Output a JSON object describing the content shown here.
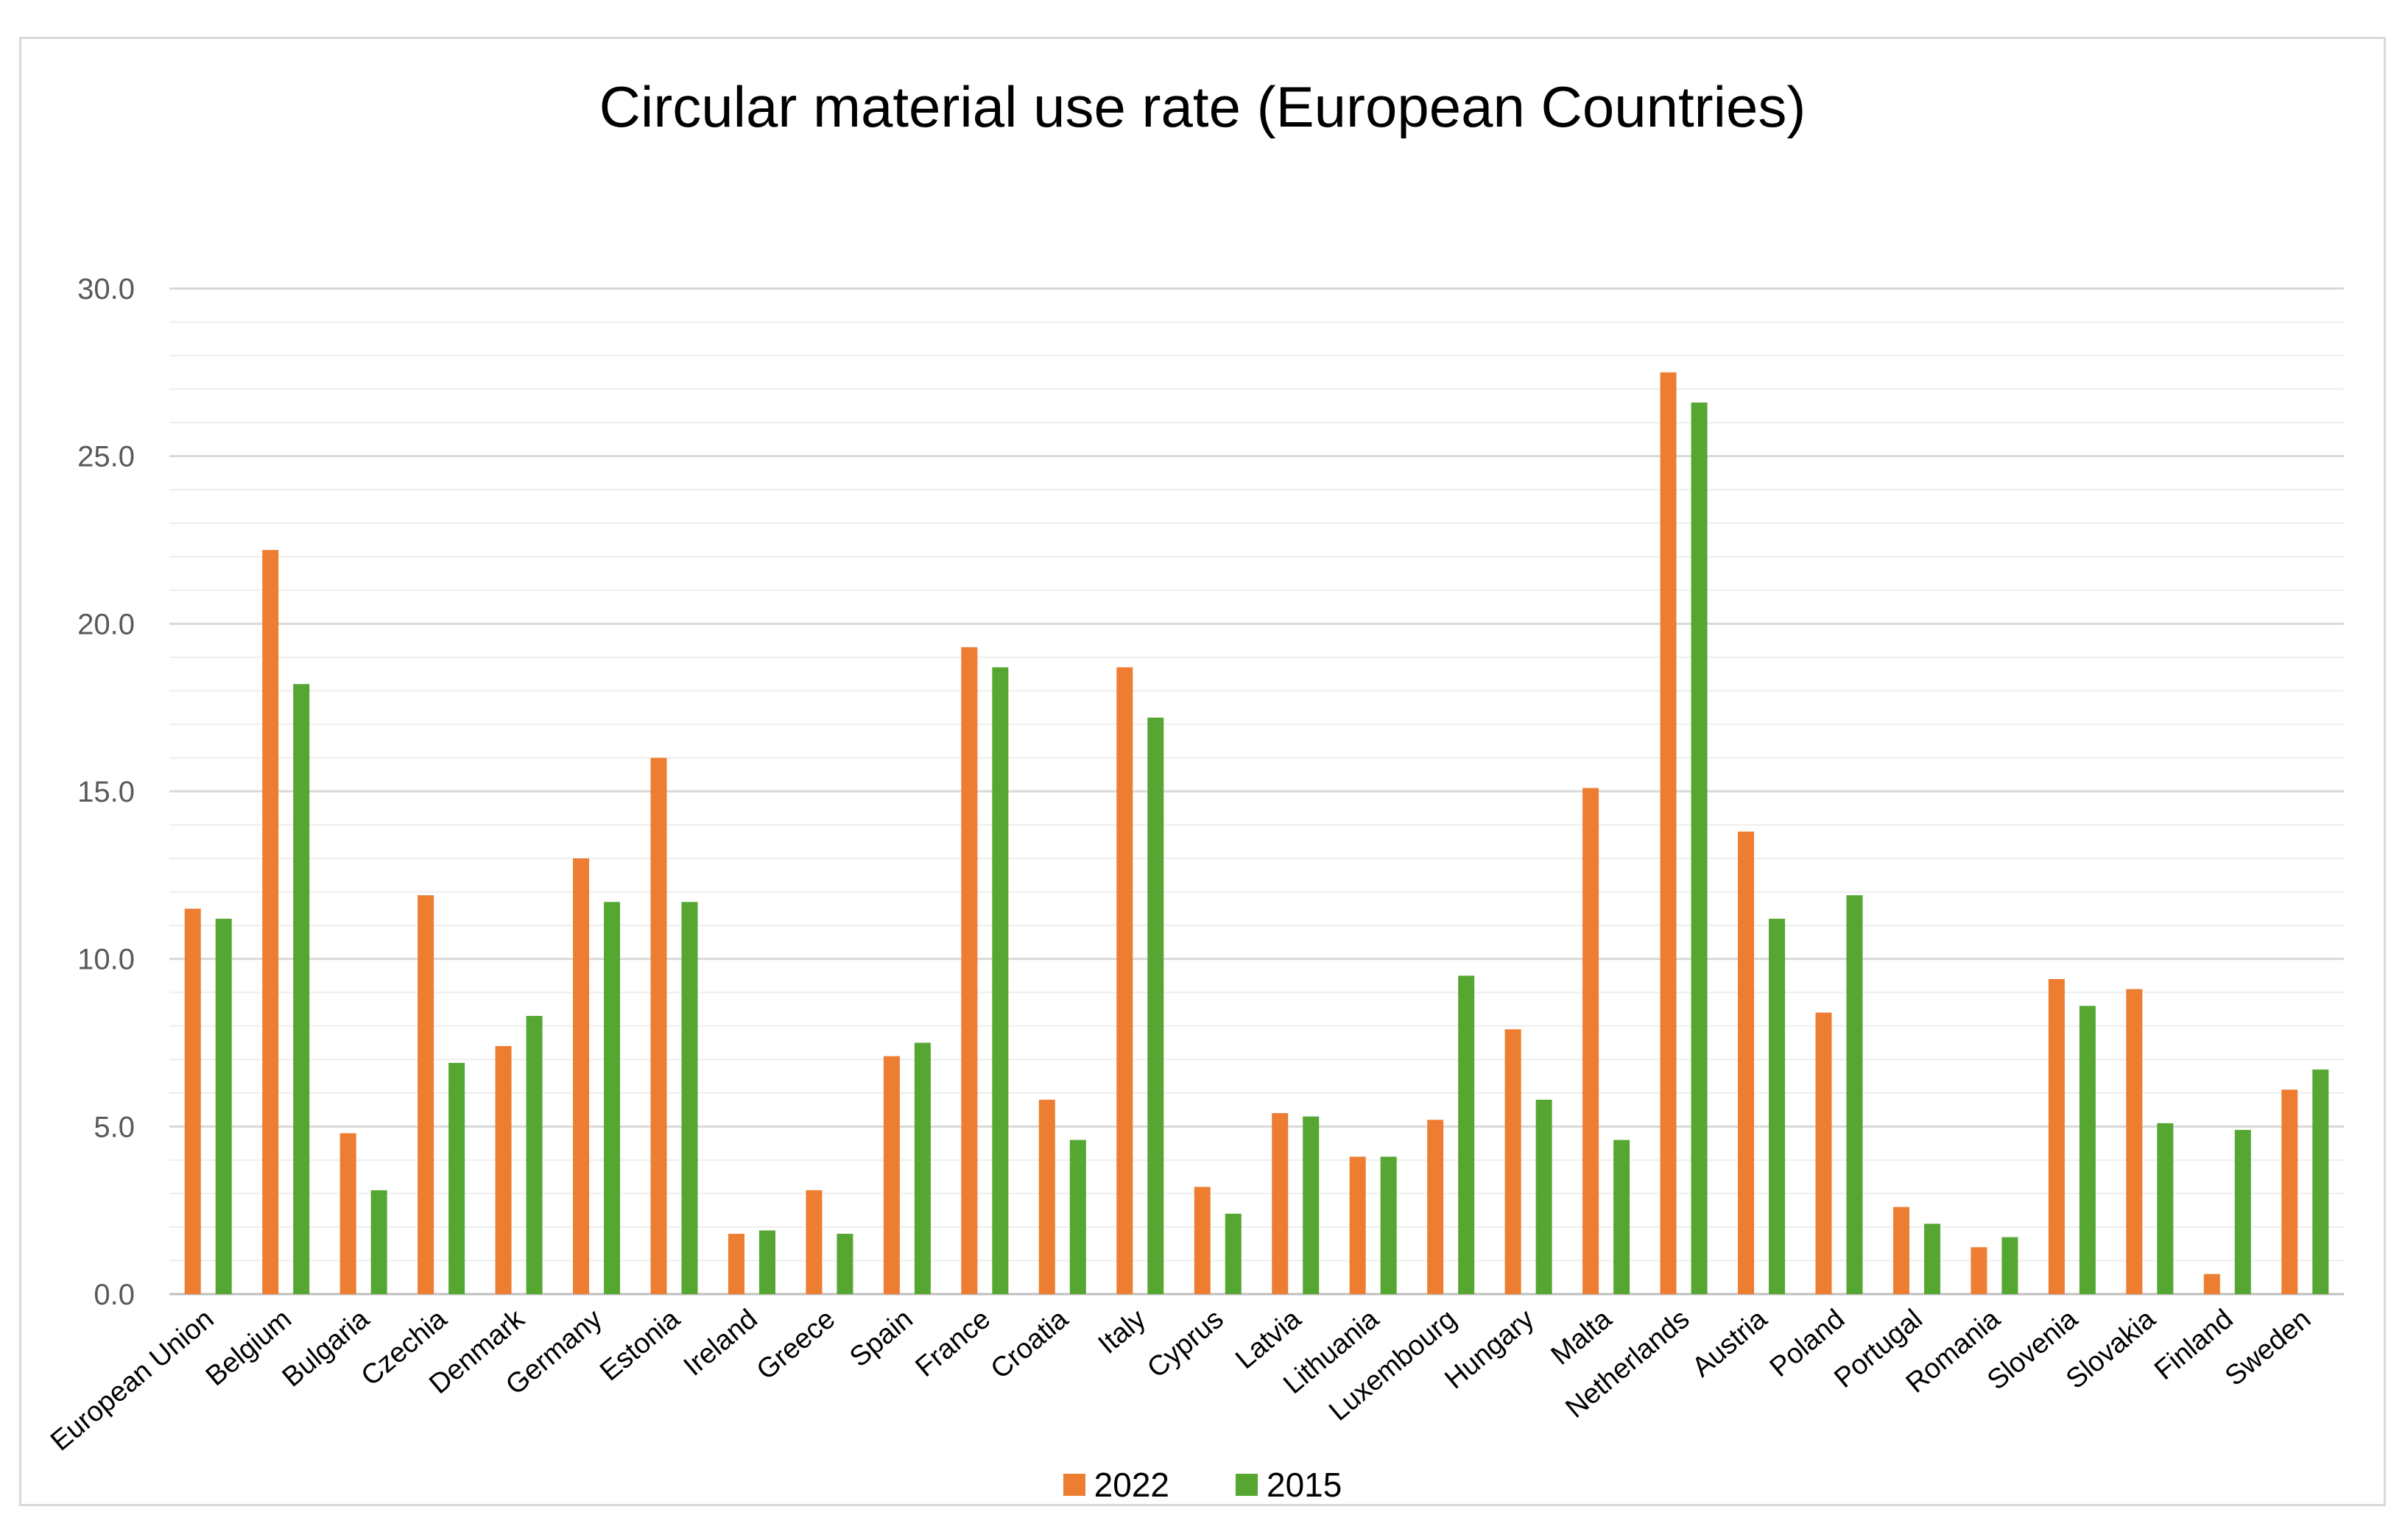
{
  "chart_data": {
    "type": "bar",
    "title": "Circular material use rate (European Countries)",
    "xlabel": "",
    "ylabel": "",
    "ylim": [
      0,
      30
    ],
    "yticks": [
      "0.0",
      "5.0",
      "10.0",
      "15.0",
      "20.0",
      "25.0",
      "30.0"
    ],
    "grid": true,
    "legend_position": "bottom",
    "categories": [
      "European Union",
      "Belgium",
      "Bulgaria",
      "Czechia",
      "Denmark",
      "Germany",
      "Estonia",
      "Ireland",
      "Greece",
      "Spain",
      "France",
      "Croatia",
      "Italy",
      "Cyprus",
      "Latvia",
      "Lithuania",
      "Luxembourg",
      "Hungary",
      "Malta",
      "Netherlands",
      "Austria",
      "Poland",
      "Portugal",
      "Romania",
      "Slovenia",
      "Slovakia",
      "Finland",
      "Sweden"
    ],
    "series": [
      {
        "name": "2022",
        "color": "#ED7D31",
        "values": [
          11.5,
          22.2,
          4.8,
          11.9,
          7.4,
          13.0,
          16.0,
          1.8,
          3.1,
          7.1,
          19.3,
          5.8,
          18.7,
          3.2,
          5.4,
          4.1,
          5.2,
          7.9,
          15.1,
          27.5,
          13.8,
          8.4,
          2.6,
          1.4,
          9.4,
          9.1,
          0.6,
          6.1
        ]
      },
      {
        "name": "2015",
        "color": "#56A632",
        "values": [
          11.2,
          18.2,
          3.1,
          6.9,
          8.3,
          11.7,
          11.7,
          1.9,
          1.8,
          7.5,
          18.7,
          4.6,
          17.2,
          2.4,
          5.3,
          4.1,
          9.5,
          5.8,
          4.6,
          26.6,
          11.2,
          11.9,
          2.1,
          1.7,
          8.6,
          5.1,
          4.9,
          6.7
        ]
      }
    ]
  }
}
